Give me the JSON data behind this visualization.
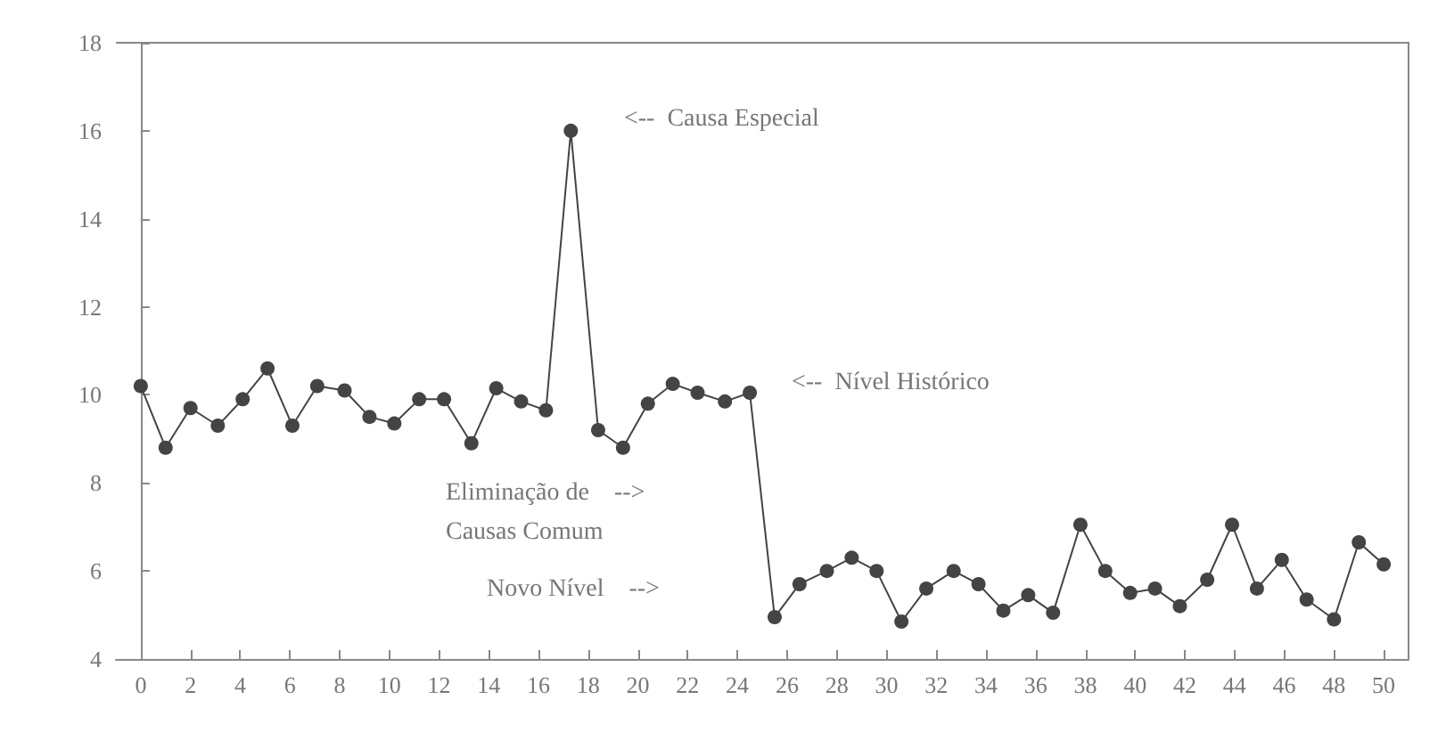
{
  "chart_data": {
    "type": "line",
    "x": [
      0,
      1,
      2,
      3.1,
      4.1,
      5.1,
      6.1,
      7.1,
      8.2,
      9.2,
      10.2,
      11.2,
      12.2,
      13.3,
      14.3,
      15.3,
      16.3,
      17.3,
      18.4,
      19.4,
      20.4,
      21.4,
      22.4,
      23.5,
      24.5,
      25.5,
      26.5,
      27.6,
      28.6,
      29.6,
      30.6,
      31.6,
      32.7,
      33.7,
      34.7,
      35.7,
      36.7,
      37.8,
      38.8,
      39.8,
      40.8,
      41.8,
      42.9,
      43.9,
      44.9,
      45.9,
      46.9,
      48,
      49,
      50
    ],
    "series": [
      {
        "color": "#444444",
        "values": [
          10.2,
          8.8,
          9.7,
          9.3,
          9.9,
          10.6,
          9.3,
          10.2,
          10.1,
          9.5,
          9.35,
          9.9,
          9.9,
          8.9,
          10.15,
          9.85,
          9.65,
          16,
          9.2,
          8.8,
          9.8,
          10.25,
          10.05,
          9.85,
          10.05,
          4.95,
          5.7,
          6.0,
          6.3,
          6.0,
          4.85,
          5.6,
          6.0,
          5.7,
          5.1,
          5.45,
          5.05,
          7.05,
          6.0,
          5.5,
          5.6,
          5.2,
          5.8,
          7.05,
          5.6,
          6.25,
          5.35,
          4.9,
          6.65,
          6.15
        ]
      }
    ],
    "xlim": [
      -1,
      51
    ],
    "xticks": [
      0,
      2,
      4,
      6,
      8,
      10,
      12,
      14,
      16,
      18,
      20,
      22,
      24,
      26,
      28,
      30,
      32,
      34,
      36,
      38,
      40,
      42,
      44,
      46,
      48,
      50
    ],
    "ylim": [
      4,
      18
    ],
    "yticks": [
      4,
      6,
      8,
      10,
      12,
      14,
      16,
      18
    ],
    "grid": false,
    "marker": "circle",
    "line_style": "solid",
    "annotations": [
      "<--  Causa Especial",
      "<--  Nível Histórico",
      "Eliminação de    -->\nCausas Comum",
      "Novo Nível    -->"
    ]
  }
}
